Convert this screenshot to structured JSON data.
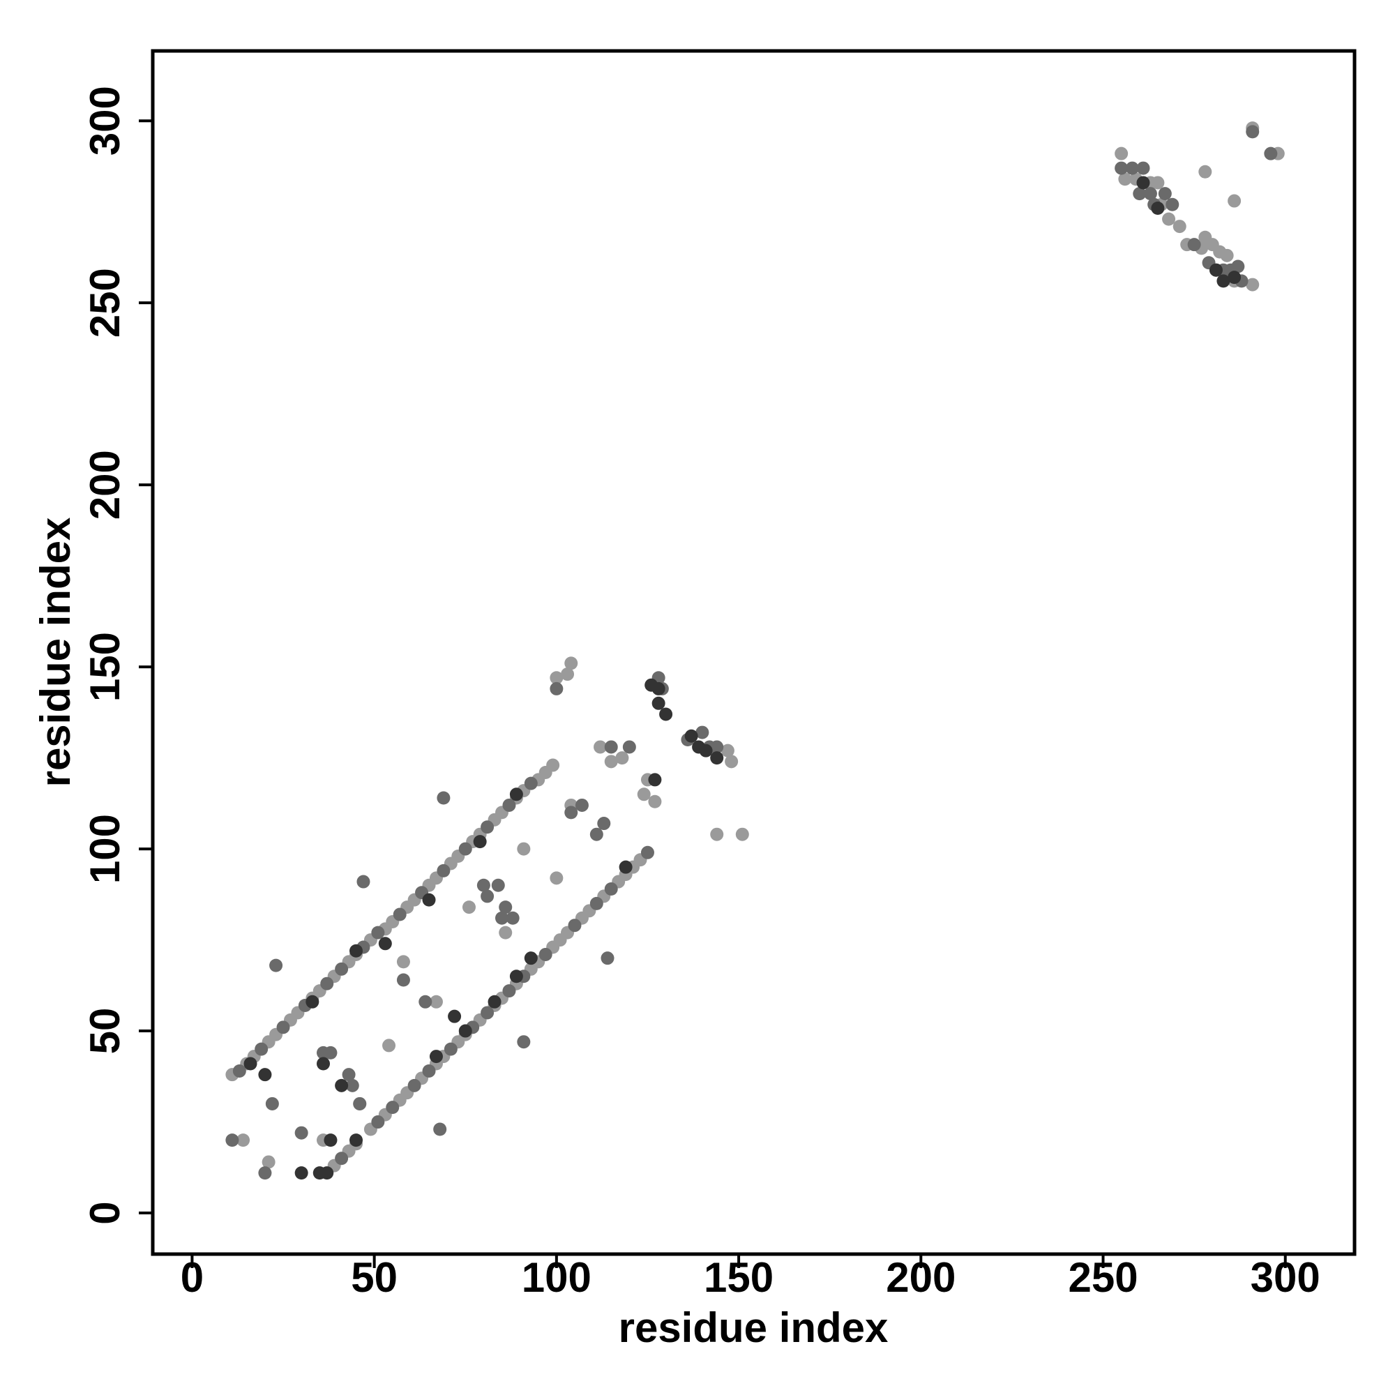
{
  "chart_data": {
    "type": "scatter",
    "xlabel": "residue index",
    "ylabel": "residue index",
    "xlim": [
      -10.8,
      319
    ],
    "ylim": [
      -11.3,
      319.2
    ],
    "xticks": [
      0,
      50,
      100,
      150,
      200,
      250,
      300
    ],
    "yticks": [
      0,
      50,
      100,
      150,
      200,
      250,
      300
    ],
    "series": [
      {
        "color": "#9a9a9a",
        "x": [
          11,
          15,
          17,
          21,
          23,
          27,
          29,
          33,
          35,
          39,
          43,
          45,
          49,
          53,
          55,
          59,
          61,
          65,
          67,
          71,
          73,
          77,
          79,
          83,
          85,
          89,
          91,
          95,
          97,
          99,
          39,
          43,
          45,
          49,
          53,
          57,
          59,
          63,
          67,
          69,
          73,
          75,
          79,
          83,
          85,
          89,
          93,
          95,
          99,
          101,
          103,
          107,
          109,
          113,
          117,
          119,
          121,
          123,
          14,
          21,
          36,
          46,
          54,
          58,
          67,
          76,
          86,
          91,
          100,
          104,
          100,
          104,
          103,
          112,
          115,
          118,
          124,
          125,
          127,
          144,
          148,
          151,
          147,
          255,
          256,
          259,
          263,
          265,
          266,
          268,
          271,
          273,
          277,
          278,
          280,
          282,
          284,
          286,
          291,
          278,
          286,
          291,
          298
        ],
        "y": [
          38,
          41,
          43,
          47,
          49,
          53,
          55,
          59,
          61,
          65,
          69,
          71,
          75,
          78,
          80,
          84,
          86,
          90,
          92,
          96,
          98,
          102,
          104,
          108,
          110,
          114,
          116,
          119,
          121,
          123,
          13,
          17,
          19,
          23,
          27,
          31,
          33,
          37,
          41,
          43,
          47,
          49,
          53,
          57,
          59,
          63,
          67,
          69,
          73,
          75,
          77,
          81,
          83,
          87,
          91,
          93,
          95,
          97,
          20,
          14,
          20,
          30,
          46,
          69,
          58,
          84,
          77,
          100,
          92,
          112,
          147,
          151,
          148,
          128,
          124,
          125,
          115,
          119,
          113,
          104,
          124,
          104,
          127,
          291,
          284,
          284,
          283,
          283,
          277,
          273,
          271,
          266,
          265,
          268,
          266,
          264,
          263,
          256,
          255,
          286,
          278,
          298,
          291
        ]
      },
      {
        "color": "#6a6a6a",
        "x": [
          13,
          19,
          25,
          31,
          37,
          41,
          47,
          51,
          57,
          63,
          69,
          75,
          81,
          87,
          93,
          41,
          51,
          55,
          61,
          65,
          71,
          77,
          81,
          87,
          91,
          97,
          105,
          111,
          115,
          125,
          11,
          20,
          22,
          23,
          30,
          36,
          38,
          43,
          44,
          46,
          47,
          58,
          64,
          68,
          69,
          80,
          81,
          84,
          85,
          86,
          88,
          91,
          104,
          107,
          111,
          113,
          114,
          100,
          115,
          120,
          128,
          129,
          136,
          140,
          142,
          144,
          255,
          258,
          260,
          261,
          263,
          264,
          267,
          269,
          275,
          279,
          281,
          283,
          285,
          287,
          288,
          291,
          296
        ],
        "y": [
          39,
          45,
          51,
          57,
          63,
          67,
          73,
          77,
          82,
          88,
          94,
          100,
          106,
          112,
          118,
          15,
          25,
          29,
          35,
          39,
          45,
          51,
          55,
          61,
          65,
          71,
          79,
          85,
          89,
          99,
          20,
          11,
          30,
          68,
          22,
          44,
          44,
          38,
          35,
          30,
          91,
          64,
          58,
          23,
          114,
          90,
          87,
          90,
          81,
          84,
          81,
          47,
          110,
          112,
          104,
          107,
          70,
          144,
          128,
          128,
          147,
          144,
          130,
          132,
          128,
          128,
          287,
          287,
          280,
          287,
          280,
          277,
          280,
          277,
          266,
          261,
          259,
          259,
          259,
          260,
          256,
          297,
          291
        ]
      },
      {
        "color": "#333333",
        "x": [
          16,
          33,
          45,
          53,
          65,
          79,
          89,
          37,
          45,
          67,
          75,
          83,
          89,
          93,
          119,
          20,
          30,
          35,
          36,
          38,
          41,
          72,
          127,
          128,
          126,
          128,
          130,
          137,
          139,
          141,
          144,
          261,
          265,
          281,
          283,
          286
        ],
        "y": [
          41,
          58,
          72,
          74,
          86,
          102,
          115,
          11,
          20,
          43,
          50,
          58,
          65,
          70,
          95,
          38,
          11,
          11,
          41,
          20,
          35,
          54,
          119,
          144,
          145,
          140,
          137,
          131,
          128,
          127,
          125,
          283,
          276,
          259,
          256,
          257
        ]
      }
    ]
  }
}
